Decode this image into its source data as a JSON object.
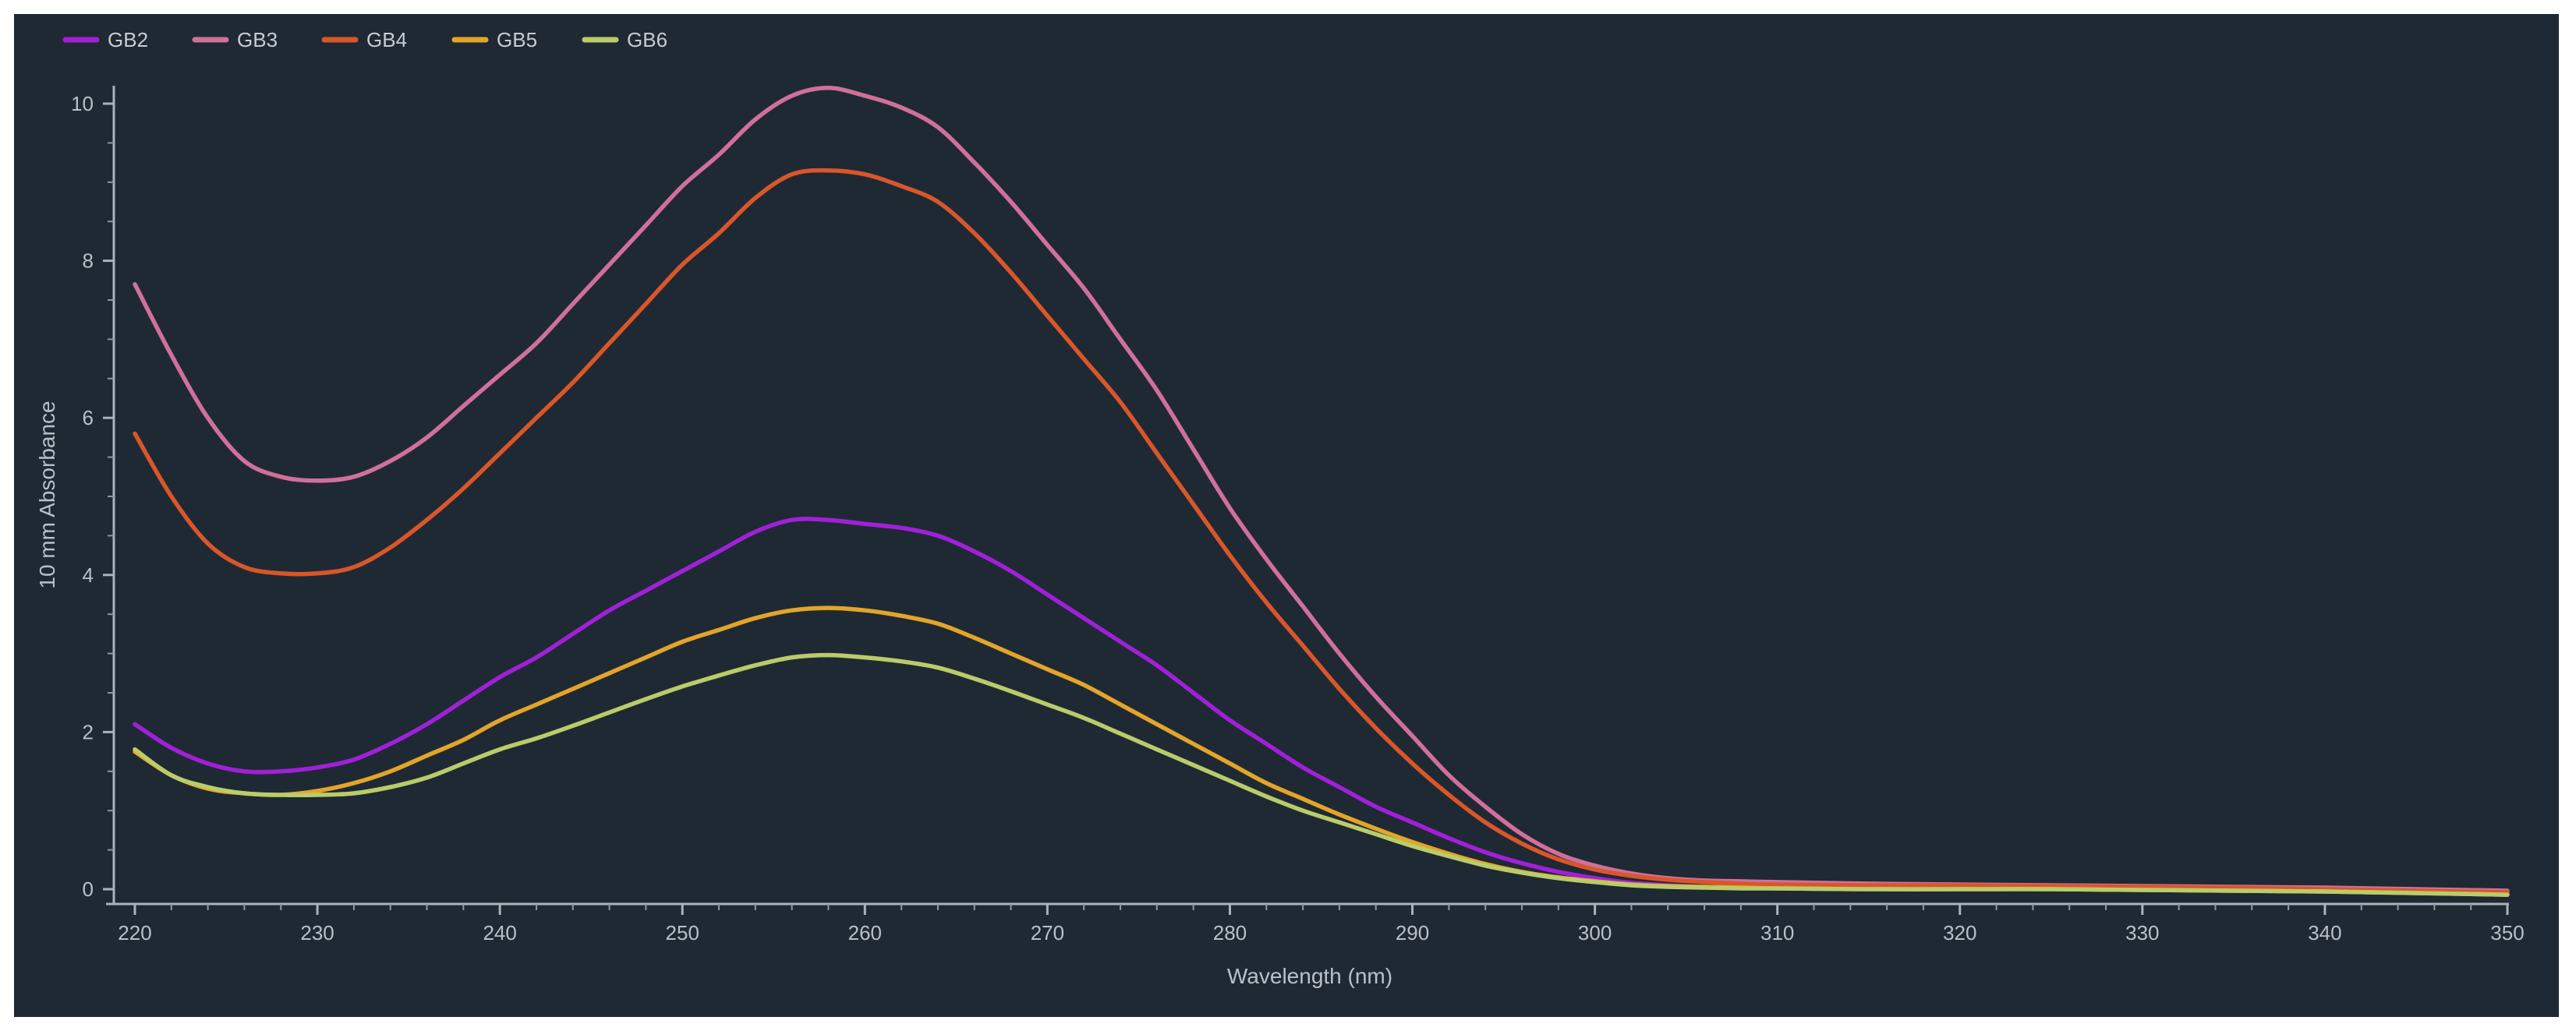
{
  "chart_data": {
    "type": "line",
    "title": "",
    "xlabel": "Wavelength (nm)",
    "ylabel": "10 mm Absorbance",
    "xlim": [
      220,
      350
    ],
    "ylim": [
      0,
      10
    ],
    "x_ticks": [
      220,
      230,
      240,
      250,
      260,
      270,
      280,
      290,
      300,
      310,
      320,
      330,
      340,
      350
    ],
    "y_ticks": [
      0,
      2,
      4,
      6,
      8,
      10
    ],
    "legend_position": "top-left",
    "grid": false,
    "x": [
      220,
      222,
      224,
      226,
      228,
      230,
      232,
      234,
      236,
      238,
      240,
      242,
      244,
      246,
      248,
      250,
      252,
      254,
      256,
      258,
      260,
      262,
      264,
      266,
      268,
      270,
      272,
      274,
      276,
      278,
      280,
      282,
      284,
      286,
      288,
      290,
      292,
      294,
      296,
      298,
      300,
      302,
      304,
      306,
      308,
      310,
      315,
      320,
      325,
      330,
      335,
      340,
      345,
      350
    ],
    "series": [
      {
        "name": "GB2",
        "color": "#a020d8",
        "values": [
          2.1,
          1.8,
          1.6,
          1.5,
          1.5,
          1.55,
          1.65,
          1.85,
          2.1,
          2.4,
          2.7,
          2.95,
          3.25,
          3.55,
          3.8,
          4.05,
          4.3,
          4.55,
          4.7,
          4.7,
          4.65,
          4.6,
          4.5,
          4.3,
          4.05,
          3.75,
          3.45,
          3.15,
          2.85,
          2.5,
          2.15,
          1.85,
          1.55,
          1.3,
          1.05,
          0.85,
          0.65,
          0.47,
          0.33,
          0.22,
          0.14,
          0.08,
          0.05,
          0.03,
          0.02,
          0.01,
          0.0,
          0.0,
          0.0,
          0.0,
          -0.02,
          -0.03,
          -0.05,
          -0.07
        ]
      },
      {
        "name": "GB3",
        "color": "#d0709a",
        "values": [
          7.7,
          6.8,
          6.0,
          5.45,
          5.25,
          5.2,
          5.25,
          5.45,
          5.75,
          6.15,
          6.55,
          6.95,
          7.45,
          7.95,
          8.45,
          8.95,
          9.35,
          9.8,
          10.1,
          10.2,
          10.1,
          9.95,
          9.7,
          9.25,
          8.75,
          8.2,
          7.65,
          7.0,
          6.35,
          5.6,
          4.85,
          4.2,
          3.6,
          3.0,
          2.45,
          1.95,
          1.45,
          1.05,
          0.7,
          0.45,
          0.3,
          0.2,
          0.14,
          0.11,
          0.1,
          0.09,
          0.07,
          0.06,
          0.05,
          0.04,
          0.03,
          0.02,
          0.0,
          -0.02
        ]
      },
      {
        "name": "GB4",
        "color": "#d9562b",
        "values": [
          5.8,
          5.0,
          4.4,
          4.1,
          4.02,
          4.02,
          4.1,
          4.35,
          4.7,
          5.1,
          5.55,
          6.0,
          6.45,
          6.95,
          7.45,
          7.95,
          8.35,
          8.8,
          9.1,
          9.15,
          9.1,
          8.95,
          8.75,
          8.35,
          7.85,
          7.3,
          6.75,
          6.2,
          5.55,
          4.9,
          4.25,
          3.65,
          3.1,
          2.55,
          2.05,
          1.6,
          1.2,
          0.85,
          0.58,
          0.38,
          0.25,
          0.17,
          0.12,
          0.09,
          0.07,
          0.06,
          0.05,
          0.05,
          0.04,
          0.03,
          0.02,
          0.0,
          -0.02,
          -0.04
        ]
      },
      {
        "name": "GB5",
        "color": "#e2a52a",
        "values": [
          1.75,
          1.45,
          1.28,
          1.22,
          1.2,
          1.25,
          1.35,
          1.5,
          1.7,
          1.9,
          2.15,
          2.35,
          2.55,
          2.75,
          2.95,
          3.15,
          3.3,
          3.45,
          3.55,
          3.58,
          3.55,
          3.48,
          3.38,
          3.2,
          3.0,
          2.8,
          2.6,
          2.35,
          2.1,
          1.85,
          1.6,
          1.35,
          1.15,
          0.95,
          0.77,
          0.6,
          0.45,
          0.32,
          0.22,
          0.15,
          0.1,
          0.06,
          0.04,
          0.03,
          0.02,
          0.01,
          0.0,
          0.0,
          0.0,
          -0.01,
          -0.02,
          -0.03,
          -0.05,
          -0.07
        ]
      },
      {
        "name": "GB6",
        "color": "#b9cc6a",
        "values": [
          1.78,
          1.45,
          1.3,
          1.22,
          1.2,
          1.2,
          1.22,
          1.3,
          1.42,
          1.6,
          1.78,
          1.92,
          2.08,
          2.25,
          2.42,
          2.58,
          2.72,
          2.85,
          2.95,
          2.98,
          2.95,
          2.9,
          2.82,
          2.68,
          2.52,
          2.35,
          2.18,
          1.98,
          1.78,
          1.58,
          1.38,
          1.18,
          1.0,
          0.85,
          0.7,
          0.55,
          0.42,
          0.3,
          0.21,
          0.14,
          0.09,
          0.05,
          0.03,
          0.02,
          0.01,
          0.01,
          0.0,
          0.0,
          0.0,
          -0.01,
          -0.02,
          -0.03,
          -0.05,
          -0.07
        ]
      }
    ]
  }
}
